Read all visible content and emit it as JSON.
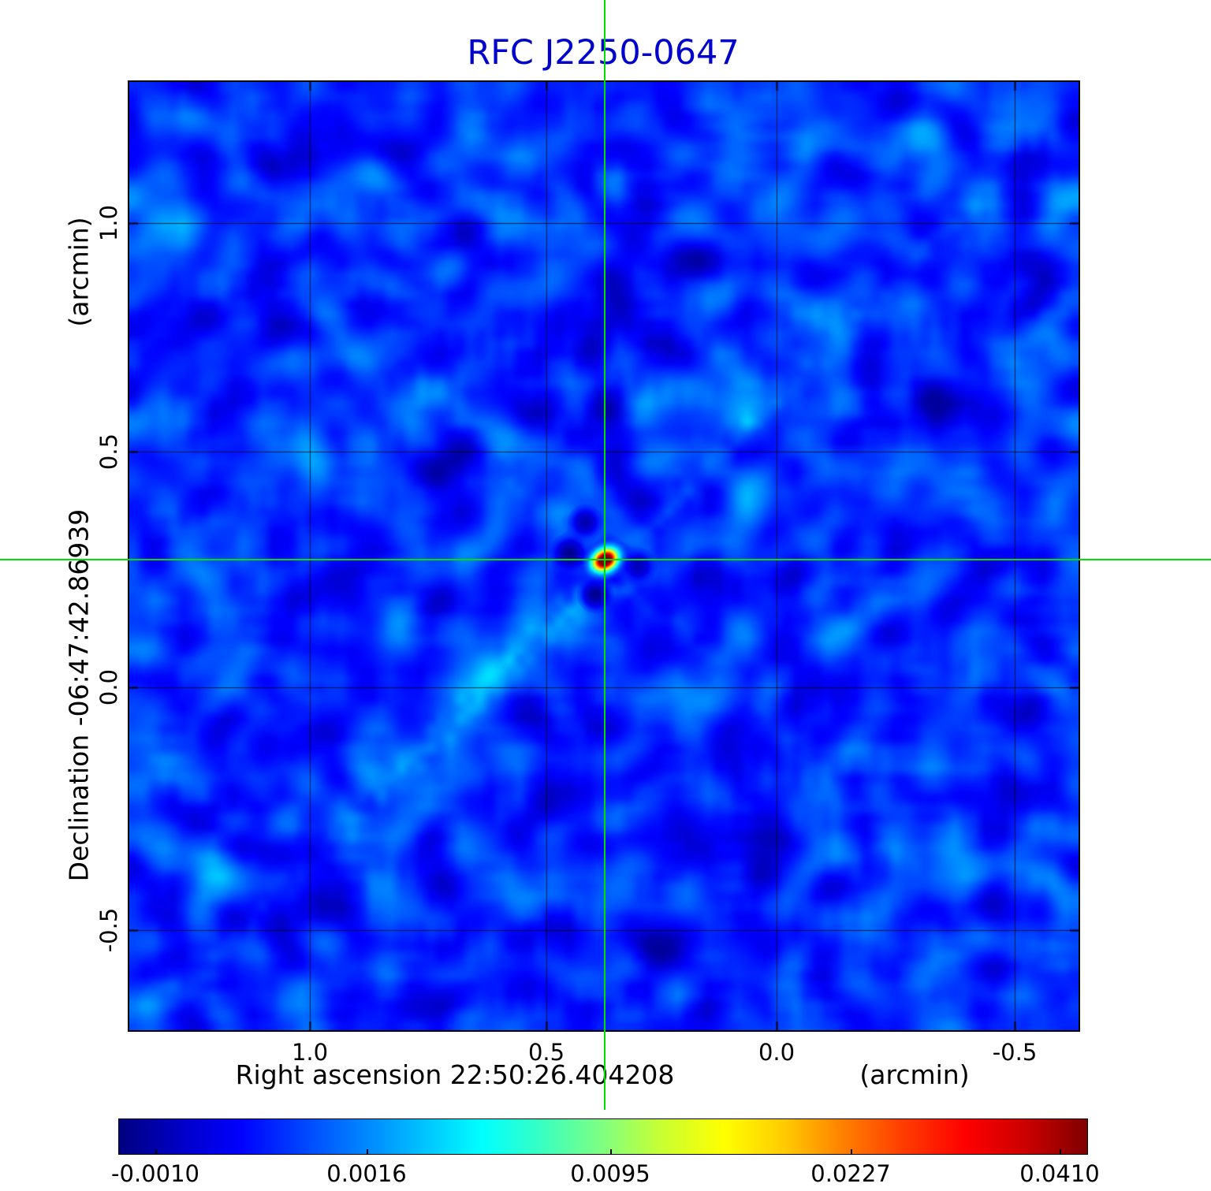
{
  "title": "RFC J2250-0647",
  "chart_data": {
    "type": "heatmap",
    "title": "RFC J2250-0647",
    "xlabel": "Right ascension  22:50:26.404208",
    "xunit": "(arcmin)",
    "ylabel": "Declination  -06:47:42.86939",
    "yunit": "(arcmin)",
    "x_tick_labels": [
      "1.0",
      "0.5",
      "0.0",
      "-0.5"
    ],
    "y_tick_labels": [
      "1.0",
      "0.5",
      "0.0",
      "-0.5"
    ],
    "x_axis_range_arcmin": [
      1.39,
      -0.64
    ],
    "y_axis_range_arcmin": [
      1.3,
      -0.71
    ],
    "grid": true,
    "colormap": "jet",
    "colorbar_tick_labels": [
      "-0.0010",
      "0.0016",
      "0.0095",
      "0.0227",
      "0.0410"
    ],
    "colorbar_range": [
      -0.001,
      0.041
    ],
    "source": {
      "name": "RFC J2250-0647",
      "crosshair_x_arcmin": 0.37,
      "crosshair_y_arcmin": 0.27,
      "peak_value": 0.041
    },
    "colors": {
      "title": "#0000cd",
      "crosshair": "#00e000",
      "grid": "#000000",
      "frame": "#000000",
      "noise_low": "#000080",
      "noise_high": "#00c8ff"
    }
  }
}
